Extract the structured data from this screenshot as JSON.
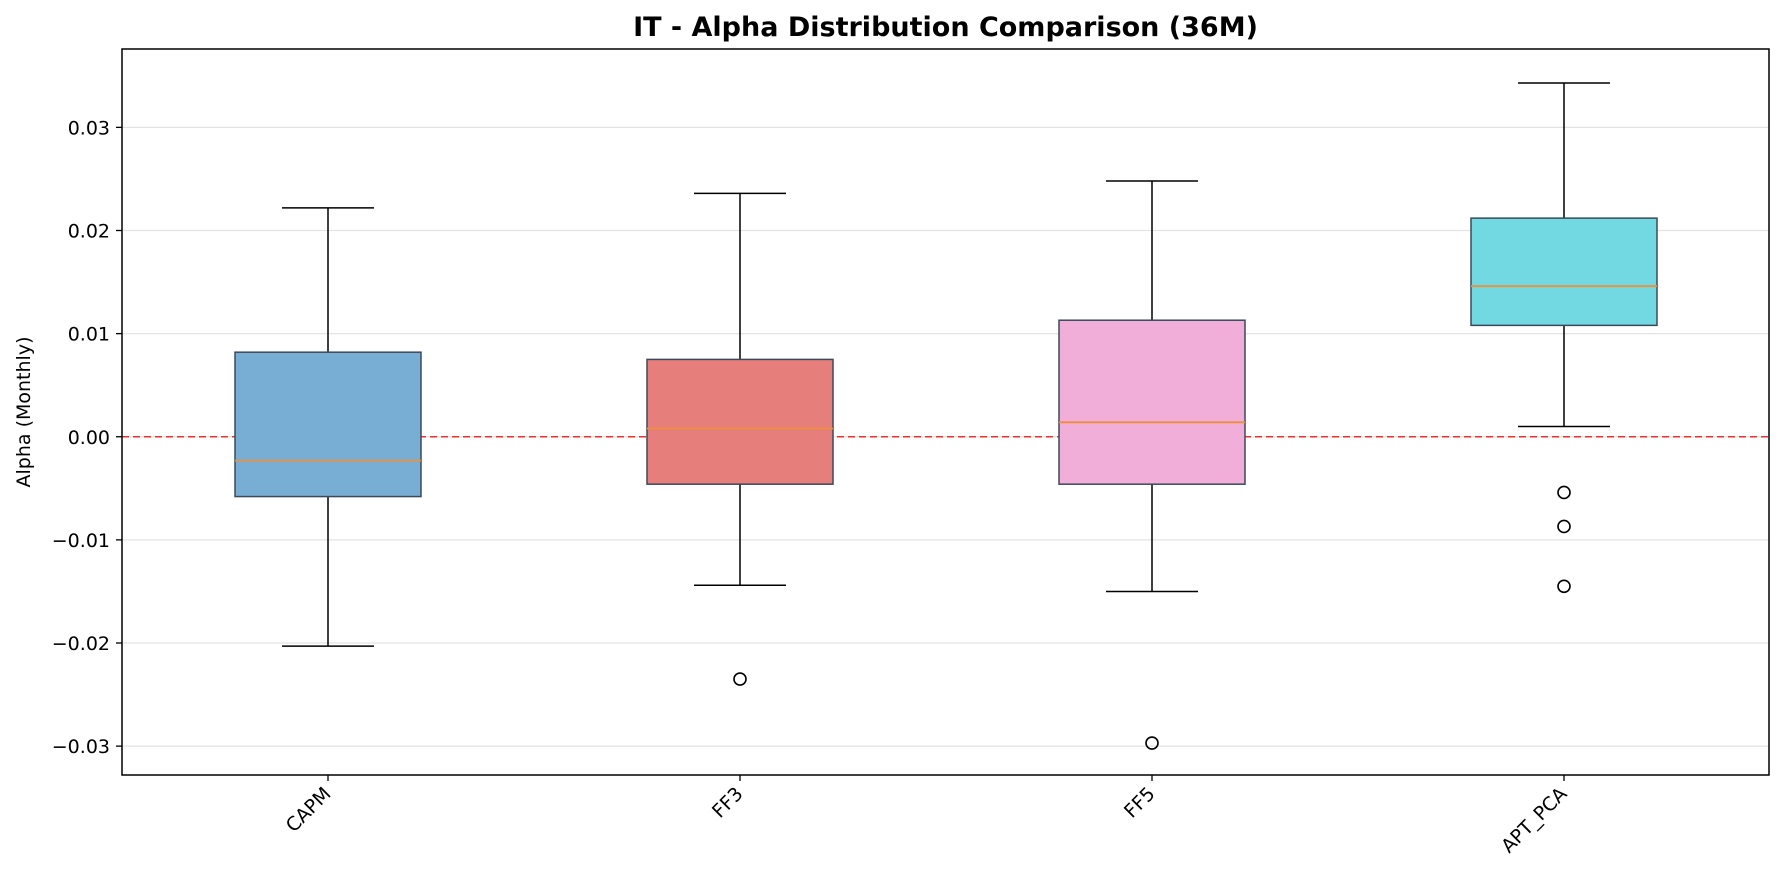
{
  "chart_data": {
    "type": "boxplot",
    "title": "IT - Alpha Distribution Comparison (36M)",
    "xlabel": "",
    "ylabel": "Alpha (Monthly)",
    "ylim": [
      -0.0328,
      0.0376
    ],
    "yticks": [
      -0.03,
      -0.02,
      -0.01,
      0.0,
      0.01,
      0.02,
      0.03
    ],
    "ytick_labels": [
      "−0.03",
      "−0.02",
      "−0.01",
      "0.00",
      "0.01",
      "0.02",
      "0.03"
    ],
    "grid": "horizontal",
    "reference_line": {
      "y": 0.0,
      "color": "#e8322e",
      "style": "dashed"
    },
    "median_color": "#ee8f3a",
    "categories": [
      "CAPM",
      "FF3",
      "FF5",
      "APT_PCA"
    ],
    "boxes": [
      {
        "name": "CAPM",
        "whisker_low": -0.0203,
        "q1": -0.0058,
        "median": -0.0023,
        "q3": 0.0082,
        "whisker_high": 0.0222,
        "outliers": [],
        "color": "#78aed3"
      },
      {
        "name": "FF3",
        "whisker_low": -0.0144,
        "q1": -0.0046,
        "median": 0.0008,
        "q3": 0.0075,
        "whisker_high": 0.0236,
        "outliers": [
          -0.0235
        ],
        "color": "#e67e7c"
      },
      {
        "name": "FF5",
        "whisker_low": -0.015,
        "q1": -0.0046,
        "median": 0.0014,
        "q3": 0.0113,
        "whisker_high": 0.0248,
        "outliers": [
          -0.0297
        ],
        "color": "#f0aed9"
      },
      {
        "name": "APT_PCA",
        "whisker_low": 0.001,
        "q1": 0.0108,
        "median": 0.0146,
        "q3": 0.0212,
        "whisker_high": 0.0343,
        "outliers": [
          -0.0054,
          -0.0087,
          -0.0145
        ],
        "color": "#72d8e1"
      }
    ]
  }
}
